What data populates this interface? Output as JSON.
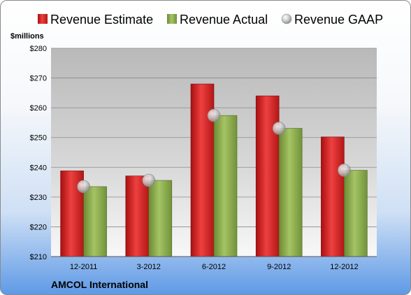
{
  "chart_data": {
    "type": "bar",
    "title": "",
    "ylabel": "$millions",
    "xlabel": "",
    "company": "AMCOL International",
    "categories": [
      "12-2011",
      "3-2012",
      "6-2012",
      "9-2012",
      "12-2012"
    ],
    "series": [
      {
        "name": "Revenue Estimate",
        "kind": "bar",
        "color": "#d42a2a",
        "values": [
          238.8,
          237.1,
          268.0,
          264.0,
          250.2
        ]
      },
      {
        "name": "Revenue Actual",
        "kind": "bar",
        "color": "#8fad4f",
        "values": [
          233.5,
          235.6,
          257.4,
          253.1,
          239.0
        ]
      },
      {
        "name": "Revenue GAAP",
        "kind": "marker",
        "color": "#c8c8c8",
        "values": [
          233.5,
          235.6,
          257.4,
          253.1,
          239.0
        ]
      }
    ],
    "ylim": [
      210,
      280
    ],
    "yticks": [
      210,
      220,
      230,
      240,
      250,
      260,
      270,
      280
    ],
    "ytick_labels": [
      "$210",
      "$220",
      "$230",
      "$240",
      "$250",
      "$260",
      "$270",
      "$280"
    ],
    "grid": true,
    "legend_position": "top"
  }
}
